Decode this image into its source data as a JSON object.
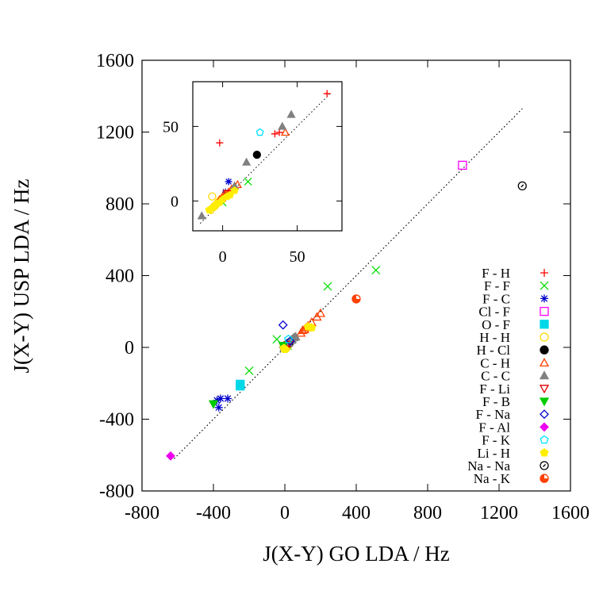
{
  "chart_data": {
    "type": "scatter",
    "xlabel": "J(X-Y) GO LDA / Hz",
    "ylabel": "J(X-Y) USP LDA / Hz",
    "xlim": [
      -800,
      1600
    ],
    "ylim": [
      -800,
      1600
    ],
    "xticks": [
      "-800",
      "-400",
      "0",
      "400",
      "800",
      "1200",
      "1600"
    ],
    "yticks": [
      "-800",
      "-400",
      "0",
      "400",
      "800",
      "1200",
      "1600"
    ],
    "grid": false,
    "legend_position": "right",
    "reference_line": {
      "style": "dotted",
      "x": [
        -620,
        1330
      ],
      "y": [
        -620,
        1330
      ]
    },
    "series": [
      {
        "name": "F - H",
        "marker": "plus",
        "color": "#ff0000",
        "points": [
          [
            5,
            3
          ],
          [
            10,
            8
          ],
          [
            20,
            15
          ],
          [
            30,
            25
          ]
        ]
      },
      {
        "name": "F - F",
        "marker": "cross",
        "color": "#00dd00",
        "points": [
          [
            510,
            430
          ],
          [
            240,
            340
          ],
          [
            -200,
            -130
          ],
          [
            -45,
            45
          ],
          [
            15,
            10
          ]
        ]
      },
      {
        "name": "F - C",
        "marker": "star",
        "color": "#0000cc",
        "points": [
          [
            -320,
            -285
          ],
          [
            -360,
            -285
          ],
          [
            -380,
            -295
          ],
          [
            -370,
            -335
          ],
          [
            -10,
            0
          ],
          [
            25,
            20
          ]
        ]
      },
      {
        "name": "Cl - F",
        "marker": "square-open",
        "color": "#ff00ff",
        "points": [
          [
            995,
            1015
          ]
        ]
      },
      {
        "name": "O - F",
        "marker": "square-filled",
        "color": "#00d8e8",
        "points": [
          [
            -250,
            -205
          ],
          [
            -250,
            -215
          ]
        ]
      },
      {
        "name": "H - H",
        "marker": "circle-open",
        "color": "#ffd800",
        "points": [
          [
            0,
            0
          ],
          [
            5,
            -5
          ],
          [
            -5,
            5
          ],
          [
            15,
            10
          ]
        ]
      },
      {
        "name": "H - Cl",
        "marker": "circle-filled",
        "color": "#000000",
        "points": [
          [
            25,
            25
          ]
        ]
      },
      {
        "name": "C - H",
        "marker": "triangle-open",
        "color": "#ff4000",
        "points": [
          [
            90,
            80
          ],
          [
            110,
            100
          ],
          [
            130,
            120
          ],
          [
            150,
            140
          ],
          [
            180,
            170
          ],
          [
            200,
            190
          ],
          [
            120,
            110
          ],
          [
            100,
            95
          ]
        ]
      },
      {
        "name": "C - C",
        "marker": "triangle-filled",
        "color": "#808080",
        "points": [
          [
            40,
            45
          ],
          [
            50,
            55
          ],
          [
            35,
            40
          ],
          [
            60,
            60
          ],
          [
            20,
            25
          ]
        ]
      },
      {
        "name": "F - Li",
        "marker": "triangle-down-open",
        "color": "#dd0000",
        "points": [
          [
            10,
            10
          ],
          [
            20,
            15
          ]
        ]
      },
      {
        "name": "F - B",
        "marker": "triangle-down-filled",
        "color": "#00cc00",
        "points": [
          [
            -400,
            -315
          ],
          [
            -10,
            10
          ]
        ]
      },
      {
        "name": "F - Na",
        "marker": "diamond-open",
        "color": "#0000cc",
        "points": [
          [
            -10,
            125
          ],
          [
            30,
            35
          ]
        ]
      },
      {
        "name": "F - Al",
        "marker": "diamond-filled",
        "color": "#ee00ee",
        "points": [
          [
            -640,
            -605
          ]
        ]
      },
      {
        "name": "F - K",
        "marker": "pentagon-open",
        "color": "#00e0ff",
        "points": [
          [
            20,
            45
          ]
        ]
      },
      {
        "name": "Li - H",
        "marker": "pentagon-filled",
        "color": "#ffee00",
        "points": [
          [
            150,
            110
          ],
          [
            130,
            115
          ],
          [
            0,
            -10
          ],
          [
            -5,
            -5
          ]
        ]
      },
      {
        "name": "Na - Na",
        "marker": "circle-dot",
        "color": "#000000",
        "points": [
          [
            1330,
            900
          ]
        ]
      },
      {
        "name": "Na - K",
        "marker": "circle-half",
        "color": "#ff4000",
        "points": [
          [
            400,
            270
          ]
        ]
      }
    ],
    "inset": {
      "xlim": [
        -20,
        80
      ],
      "ylim": [
        -20,
        80
      ],
      "xticks": [
        "0",
        "50"
      ],
      "yticks": [
        "0",
        "50"
      ],
      "reference_line": {
        "style": "dotted",
        "x": [
          -15,
          72
        ],
        "y": [
          -15,
          72
        ]
      },
      "series": [
        {
          "name": "F - H",
          "marker": "plus",
          "color": "#ff0000",
          "points": [
            [
              -2,
              39
            ],
            [
              35,
              45
            ],
            [
              38,
              46
            ],
            [
              70,
              72
            ],
            [
              2,
              2
            ],
            [
              5,
              5
            ]
          ]
        },
        {
          "name": "F - F",
          "marker": "cross",
          "color": "#00dd00",
          "points": [
            [
              17,
              13
            ],
            [
              0,
              -1
            ]
          ]
        },
        {
          "name": "F - C",
          "marker": "star",
          "color": "#0000cc",
          "points": [
            [
              4,
              13
            ],
            [
              2,
              6
            ]
          ]
        },
        {
          "name": "H - H",
          "marker": "circle-open",
          "color": "#ffd800",
          "points": [
            [
              -8,
              -6
            ],
            [
              -5,
              -3
            ],
            [
              -3,
              -1
            ],
            [
              -1,
              1
            ],
            [
              1,
              3
            ],
            [
              3,
              4
            ],
            [
              -6,
              -4
            ],
            [
              -2,
              0
            ],
            [
              -7,
              3
            ]
          ]
        },
        {
          "name": "H - Cl",
          "marker": "circle-filled",
          "color": "#000000",
          "points": [
            [
              23,
              31
            ]
          ]
        },
        {
          "name": "C - H",
          "marker": "triangle-open",
          "color": "#ff4000",
          "points": [
            [
              -2,
              1
            ],
            [
              0,
              3
            ],
            [
              2,
              5
            ],
            [
              4,
              6
            ],
            [
              6,
              8
            ],
            [
              8,
              10
            ],
            [
              10,
              11
            ],
            [
              42,
              46
            ]
          ]
        },
        {
          "name": "C - C",
          "marker": "triangle-filled",
          "color": "#808080",
          "points": [
            [
              -14,
              -10
            ],
            [
              16,
              26
            ],
            [
              40,
              50
            ],
            [
              46,
              58
            ],
            [
              8,
              10
            ]
          ]
        },
        {
          "name": "F - Li",
          "marker": "triangle-down-open",
          "color": "#dd0000",
          "points": [
            [
              3,
              5
            ]
          ]
        },
        {
          "name": "F - K",
          "marker": "pentagon-open",
          "color": "#00e0ff",
          "points": [
            [
              25,
              46
            ]
          ]
        },
        {
          "name": "Li - H",
          "marker": "pentagon-filled",
          "color": "#ffee00",
          "points": [
            [
              -9,
              -6
            ],
            [
              -6,
              -4
            ],
            [
              -4,
              -2
            ],
            [
              -2,
              -1
            ],
            [
              0,
              1
            ],
            [
              3,
              3
            ],
            [
              5,
              4
            ],
            [
              8,
              7
            ]
          ]
        }
      ]
    }
  }
}
